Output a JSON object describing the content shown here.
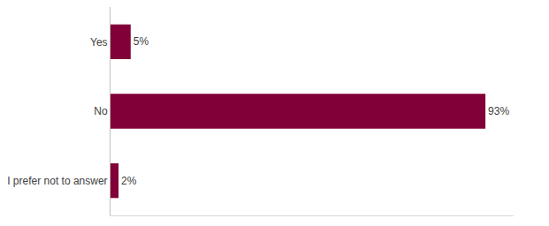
{
  "chart_data": {
    "type": "bar",
    "orientation": "horizontal",
    "categories": [
      "Yes",
      "No",
      "I prefer not to answer"
    ],
    "values": [
      5,
      93,
      2
    ],
    "value_labels": [
      "5%",
      "93%",
      "2%"
    ],
    "color": "#800037",
    "xlim": [
      0,
      100
    ],
    "xticks": [],
    "data_labels": true,
    "tick_labels": "y",
    "grid": false
  }
}
